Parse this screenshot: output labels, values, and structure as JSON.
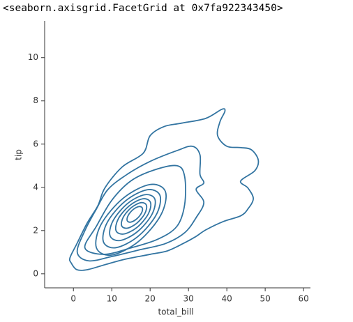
{
  "output": "<seaborn.axisgrid.FacetGrid at 0x7fa922343450>",
  "chart_data": {
    "type": "kde-contour",
    "xlabel": "total_bill",
    "ylabel": "tip",
    "color": "#3274a1",
    "xlim": [
      -7.5,
      61.8
    ],
    "ylim": [
      -0.65,
      11.7
    ],
    "xticks": [
      0,
      10,
      20,
      30,
      40,
      50,
      60
    ],
    "yticks": [
      0,
      2,
      4,
      6,
      8,
      10
    ],
    "contours": [
      {
        "x": [
          -0.5,
          -0.9,
          0.9,
          3.6,
          6.4,
          8.2,
          12.7,
          18.2,
          20,
          23.6,
          28.2,
          34.5,
          38.7,
          39.5,
          38.2,
          37.6,
          40,
          43.6,
          46.4,
          48.2,
          47.3,
          43.6,
          45.5,
          46.9,
          45.5,
          43.6,
          39.1,
          34.5,
          31.8,
          28.5,
          24.5,
          20,
          13.6,
          8.2,
          3.6,
          0.9
        ],
        "y": [
          0.48,
          0.74,
          1.39,
          2.35,
          3.16,
          3.97,
          4.94,
          5.58,
          6.39,
          6.81,
          6.97,
          7.19,
          7.61,
          7.52,
          7.03,
          6.39,
          5.9,
          5.84,
          5.74,
          5.26,
          4.77,
          4.29,
          3.97,
          3.48,
          3.0,
          2.68,
          2.42,
          2.03,
          1.71,
          1.39,
          1.06,
          0.9,
          0.68,
          0.42,
          0.19,
          0.19
        ]
      },
      {
        "x": [
          1,
          3,
          6,
          9,
          14,
          20,
          27,
          31,
          33,
          33,
          34,
          32,
          34,
          32,
          29,
          24,
          17,
          10,
          4
        ],
        "y": [
          1.0,
          2.0,
          3.0,
          3.9,
          4.6,
          5.2,
          5.7,
          5.9,
          5.5,
          4.6,
          4.2,
          3.9,
          3.3,
          2.6,
          1.9,
          1.4,
          1.1,
          0.8,
          0.6
        ]
      },
      {
        "x": [
          3,
          6,
          10,
          15,
          21,
          27,
          29,
          29,
          27,
          22,
          15,
          8
        ],
        "y": [
          1.2,
          2.2,
          3.4,
          4.3,
          4.8,
          5.0,
          4.5,
          3.2,
          2.2,
          1.6,
          1.2,
          0.9
        ]
      },
      {
        "x": [
          24,
          19.95,
          13,
          7.23,
          6,
          10.05,
          17,
          22.77
        ],
        "y": [
          3.8,
          4.13,
          3.5,
          2.29,
          1.2,
          0.87,
          1.5,
          2.71
        ]
      },
      {
        "x": [
          22.58,
          19.26,
          13.56,
          8.83,
          7.82,
          11.14,
          16.84,
          21.57
        ],
        "y": [
          3.62,
          3.89,
          3.37,
          2.38,
          1.48,
          1.21,
          1.73,
          2.72
        ]
      },
      {
        "x": [
          21.25,
          18.62,
          14.1,
          10.35,
          9.55,
          12.18,
          16.7,
          20.45
        ],
        "y": [
          3.45,
          3.66,
          3.25,
          2.46,
          1.76,
          1.54,
          1.95,
          2.74
        ]
      },
      {
        "x": [
          20.1,
          18.08,
          14.6,
          11.72,
          11.1,
          13.13,
          16.6,
          19.49
        ],
        "y": [
          3.3,
          3.47,
          3.15,
          2.55,
          2.0,
          1.84,
          2.15,
          2.76
        ]
      },
      {
        "x": [
          19.04,
          17.58,
          15.08,
          13.0,
          12.56,
          14.02,
          16.52,
          18.6
        ],
        "y": [
          3.17,
          3.29,
          3.06,
          2.62,
          2.23,
          2.11,
          2.34,
          2.78
        ]
      },
      {
        "x": [
          17.98,
          17.09,
          15.56,
          14.29,
          14.02,
          14.91,
          16.44,
          17.71
        ],
        "y": [
          3.04,
          3.11,
          2.97,
          2.7,
          2.46,
          2.39,
          2.53,
          2.8
        ]
      }
    ]
  }
}
